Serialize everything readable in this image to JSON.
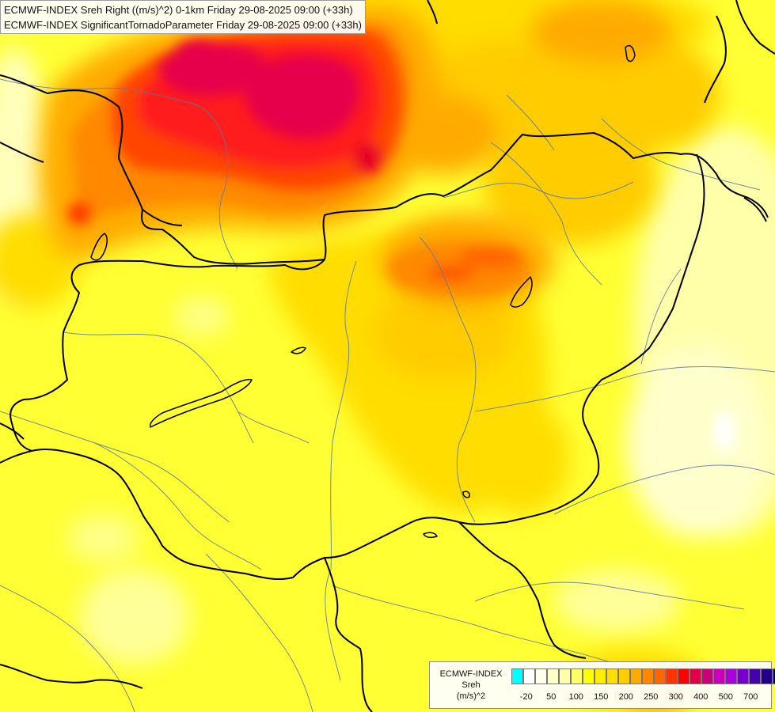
{
  "titles": {
    "line1": "ECMWF-INDEX Sreh Right ((m/s)^2) 0-1km Friday 29-08-2025 09:00 (+33h)",
    "line2": "ECMWF-INDEX SignificantTornadoParameter Friday 29-08-2025 09:00 (+33h)"
  },
  "legend": {
    "source": "ECMWF-INDEX",
    "variable": "Sreh",
    "unit": "(m/s)^2",
    "colors": [
      "#00ffff",
      "#ffffff",
      "#ffffee",
      "#ffffcc",
      "#ffffaa",
      "#ffff66",
      "#ffff00",
      "#ffee00",
      "#ffdd00",
      "#ffcc00",
      "#ffaa00",
      "#ff8800",
      "#ff6600",
      "#ff3300",
      "#ff0000",
      "#e0004a",
      "#cc0077",
      "#cc00bb",
      "#aa00dd",
      "#7700cc",
      "#4400aa",
      "#220088",
      "#000066"
    ],
    "ticks": [
      {
        "label": "-20",
        "index": 1
      },
      {
        "label": "50",
        "index": 3
      },
      {
        "label": "100",
        "index": 5
      },
      {
        "label": "150",
        "index": 7
      },
      {
        "label": "200",
        "index": 9
      },
      {
        "label": "250",
        "index": 11
      },
      {
        "label": "300",
        "index": 13
      },
      {
        "label": "400",
        "index": 15
      },
      {
        "label": "500",
        "index": 17
      },
      {
        "label": "700",
        "index": 19
      }
    ]
  },
  "fill_colors": {
    "base": "#ffff33",
    "pale": "#ffffaa",
    "lightyellow": "#ffff66",
    "gold": "#ffdd00",
    "amber": "#ffcc00",
    "orange": "#ffaa00",
    "darkorange": "#ff8800",
    "redorange": "#ff5500",
    "red": "#ff1a1a",
    "crimson": "#e6004c",
    "border": "#000000",
    "river": "#5a78a0"
  }
}
